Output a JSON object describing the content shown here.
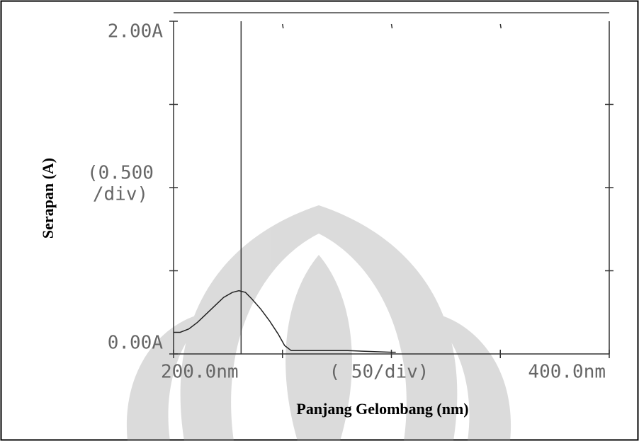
{
  "chart_data": {
    "type": "line",
    "x_label": "Panjang Gelombang (nm)",
    "y_label": "Serapan (A)",
    "x_division": "( 50/div)",
    "y_division": [
      "(0.500",
      "/div)"
    ],
    "xlim": [
      200,
      400
    ],
    "ylim": [
      0,
      2
    ],
    "xticks": [
      {
        "value": 200,
        "label": "200.0nm"
      },
      {
        "value": 400,
        "label": "400.0nm"
      }
    ],
    "yticks": [
      {
        "value": 0,
        "label": "0.00A"
      },
      {
        "value": 2,
        "label": "2.00A"
      }
    ],
    "minor_xticks": [
      250,
      300,
      350
    ],
    "minor_yticks": [
      0.5,
      1,
      1.5
    ],
    "marker_x": 231,
    "series": [
      {
        "color": "#222222",
        "x": [
          200,
          203,
          207,
          211,
          215,
          219,
          223,
          227,
          230,
          233,
          236,
          240,
          244,
          248,
          251,
          254,
          260,
          270,
          280,
          290,
          300,
          302
        ],
        "values": [
          0.13,
          0.13,
          0.15,
          0.19,
          0.24,
          0.29,
          0.34,
          0.37,
          0.38,
          0.37,
          0.33,
          0.27,
          0.2,
          0.12,
          0.05,
          0.02,
          0.02,
          0.02,
          0.02,
          0.015,
          0.01,
          0.01
        ]
      }
    ]
  }
}
